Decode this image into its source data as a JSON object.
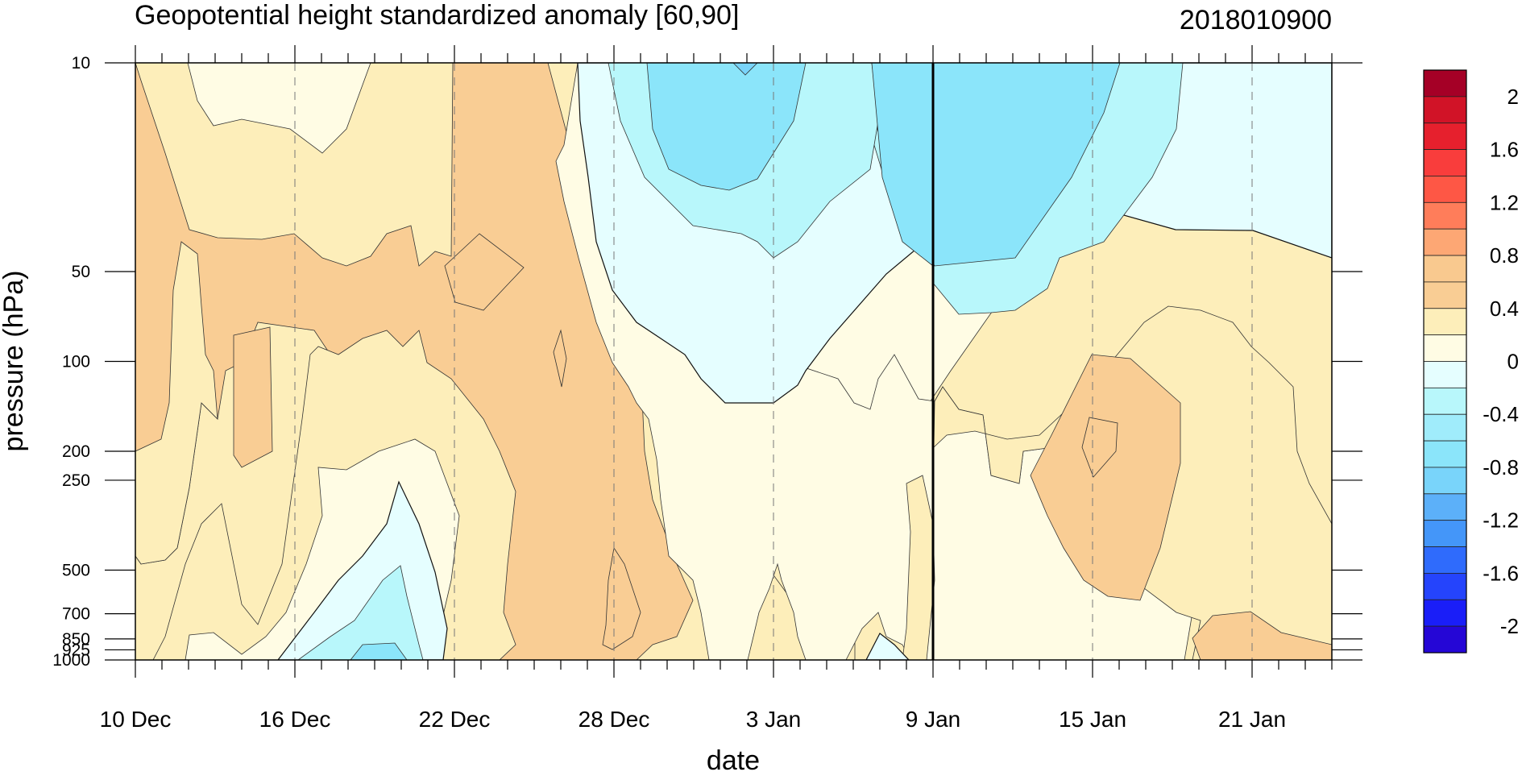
{
  "chart_data": {
    "type": "heatmap",
    "subtype": "filled-contour",
    "title": "Geopotential height standardized anomaly [60,90]",
    "date_label": "2018010900",
    "xlabel": "date",
    "ylabel": "pressure (hPa)",
    "x_tick_labels": [
      "10 Dec",
      "16 Dec",
      "22 Dec",
      "28 Dec",
      "3 Jan",
      "9 Jan",
      "15 Jan",
      "21 Jan"
    ],
    "x_range": [
      "10 Dec",
      "24 Jan"
    ],
    "current_date_marker": "9 Jan",
    "y_axis": "pressure, log scale, reversed",
    "y_tick_labels": [
      "10",
      "50",
      "100",
      "200",
      "250",
      "500",
      "700",
      "850",
      "925",
      "1000"
    ],
    "ylim": [
      1000,
      10
    ],
    "colorbar": {
      "tick_labels": [
        "2",
        "1.6",
        "1.2",
        "0.8",
        "0.4",
        "0",
        "-0.4",
        "-0.8",
        "-1.2",
        "-1.6",
        "-2"
      ],
      "colors": [
        "#a50026",
        "#d11327",
        "#e6202d",
        "#f93d3c",
        "#fe5745",
        "#ff7d5a",
        "#fda774",
        "#f9c98f",
        "#f9cd94",
        "#fdeeba",
        "#fffce4",
        "#e5feff",
        "#b8f7fb",
        "#a0ecfb",
        "#8be5fa",
        "#79d4fa",
        "#5cb0f9",
        "#4496f9",
        "#2f6bfc",
        "#2544fc",
        "#1a1ef8",
        "#2506d6"
      ]
    },
    "grid": "dashed vertical lines at labeled dates",
    "legend": "vertical colorbar on the right"
  }
}
